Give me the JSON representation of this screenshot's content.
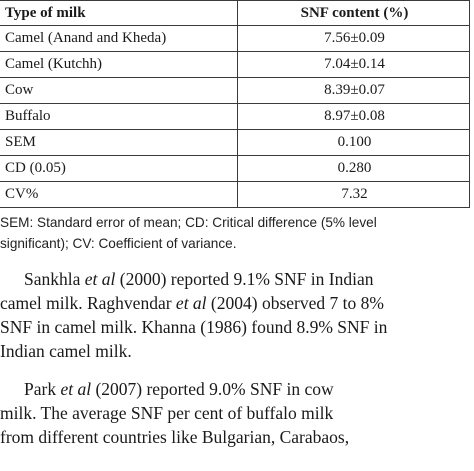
{
  "table": {
    "headers": [
      "Type of milk",
      "SNF content (%)"
    ],
    "rows": [
      [
        "Camel (Anand and Kheda)",
        "7.56±0.09"
      ],
      [
        "Camel (Kutchh)",
        "7.04±0.14"
      ],
      [
        "Cow",
        "8.39±0.07"
      ],
      [
        "Buffalo",
        "8.97±0.08"
      ],
      [
        "SEM",
        "0.100"
      ],
      [
        "CD (0.05)",
        "0.280"
      ],
      [
        "CV%",
        "7.32"
      ]
    ]
  },
  "footnote": {
    "line1": "SEM: Standard error of mean; CD: Critical difference (5% level",
    "line2": "significant); CV: Coefficient of variance."
  },
  "paragraph1": {
    "l1_pre": "Sankhla ",
    "l1_em": "et al",
    "l1_post": " (2000) reported 9.1% SNF in Indian",
    "l2_pre": "camel milk. Raghvendar ",
    "l2_em": "et al",
    "l2_post": " (2004) observed 7 to 8%",
    "l3": "SNF in camel milk. Khanna (1986) found 8.9% SNF in",
    "l4": "Indian camel milk."
  },
  "paragraph2": {
    "l1_pre": "Park ",
    "l1_em": "et al",
    "l1_post": " (2007) reported 9.0% SNF in cow",
    "l2": "milk. The average SNF per cent of buffalo milk",
    "l3": "from different countries like Bulgarian, Carabaos,"
  }
}
